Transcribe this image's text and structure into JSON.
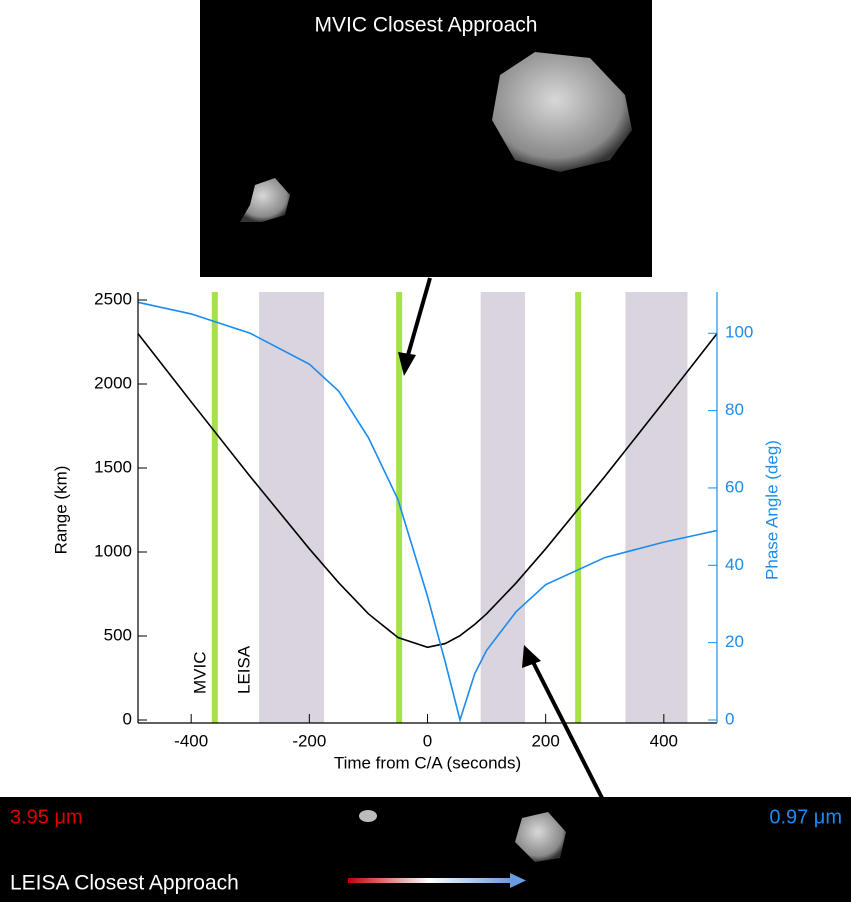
{
  "chart_data": {
    "type": "line",
    "x_label": "Time from C/A (seconds)",
    "y_label": "Range (km)",
    "y2_label": "Phase Angle (deg)",
    "x": [
      -490,
      -400,
      -300,
      -200,
      -150,
      -100,
      -50,
      0,
      30,
      55,
      80,
      100,
      150,
      200,
      300,
      400,
      490
    ],
    "series": [
      {
        "color": "#000000",
        "values": [
          2300,
          1894,
          1449,
          1019,
          816,
          632,
          491,
          433,
          455,
          502,
          569,
          632,
          816,
          1019,
          1449,
          1894,
          2300
        ]
      },
      {
        "color": "#1a8cf0",
        "axis": "y2",
        "values": [
          108,
          105,
          100,
          92,
          85,
          73,
          57,
          32,
          15,
          0,
          12,
          18,
          28,
          35,
          42,
          46,
          49
        ]
      }
    ],
    "xlim": [
      -490,
      490
    ],
    "xticks": [
      -400,
      -200,
      0,
      200,
      400
    ],
    "ylim": [
      0,
      2500
    ],
    "yticks": [
      0,
      500,
      1000,
      1500,
      2000,
      2500
    ],
    "y2lim": [
      0,
      108.6
    ],
    "y2ticks": [
      0,
      20,
      40,
      60,
      80,
      100
    ],
    "y2_color": "#1a8cf0",
    "bands": [
      [
        -285,
        -175
      ],
      [
        90,
        165
      ],
      [
        335,
        440
      ]
    ],
    "band_color": "#d9d4de",
    "markers": [
      -360,
      -48,
      255
    ],
    "marker_color": "#a6e04a",
    "annotations": [
      "MVIC",
      "LEISA"
    ]
  },
  "panels": {
    "top_title": "MVIC Closest Approach",
    "bottom_title": "LEISA Closest Approach",
    "left_wavelength": "3.95 μm",
    "right_wavelength": "0.97 μm"
  }
}
